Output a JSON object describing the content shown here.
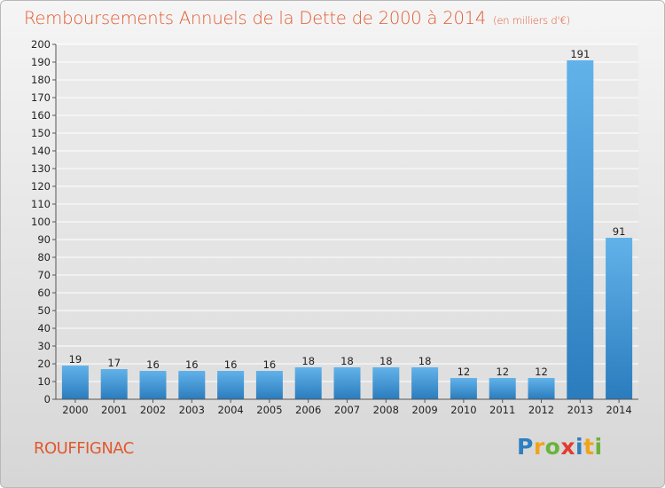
{
  "title": "Remboursements Annuels de la Dette de 2000 à 2014",
  "unit": "(en milliers d'€)",
  "place": "ROUFFIGNAC",
  "logo": {
    "text": "Proxiti",
    "letters": [
      {
        "ch": "P",
        "color": "#2d7fc1"
      },
      {
        "ch": "r",
        "color": "#f0a31c"
      },
      {
        "ch": "o",
        "color": "#6bb23a"
      },
      {
        "ch": "x",
        "color": "#e23b2d"
      },
      {
        "ch": "i",
        "color": "#2d7fc1"
      },
      {
        "ch": "t",
        "color": "#f0a31c"
      },
      {
        "ch": "i",
        "color": "#6bb23a"
      }
    ]
  },
  "colors": {
    "title": "#e2592f",
    "bar_light": "#62b2ea",
    "bar_dark": "#2a7cbd",
    "grid": "#ffffff"
  },
  "chart_data": {
    "type": "bar",
    "title": "Remboursements Annuels de la Dette de 2000 à 2014",
    "xlabel": "",
    "ylabel": "",
    "categories": [
      "2000",
      "2001",
      "2002",
      "2003",
      "2004",
      "2005",
      "2006",
      "2007",
      "2008",
      "2009",
      "2010",
      "2011",
      "2012",
      "2013",
      "2014"
    ],
    "values": [
      19,
      17,
      16,
      16,
      16,
      16,
      18,
      18,
      18,
      18,
      12,
      12,
      12,
      191,
      91
    ],
    "ylim": [
      0,
      200
    ],
    "yticks": [
      0,
      10,
      20,
      30,
      40,
      50,
      60,
      70,
      80,
      90,
      100,
      110,
      120,
      130,
      140,
      150,
      160,
      170,
      180,
      190,
      200
    ],
    "grid": true,
    "data_labels": true
  }
}
